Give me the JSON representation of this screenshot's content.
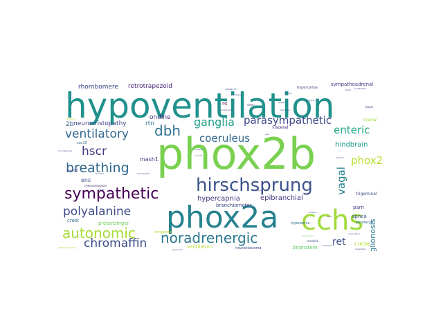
{
  "wordcloud": {
    "words": [
      {
        "text": "hypoventilation",
        "color": "#21918c",
        "size": 50
      },
      {
        "text": "phox2b",
        "color": "#7ad151",
        "size": 62
      },
      {
        "text": "phox2a",
        "color": "#26828e",
        "size": 44
      },
      {
        "text": "cchs",
        "color": "#a0da39",
        "size": 40
      },
      {
        "text": "hirschsprung",
        "color": "#3b528b",
        "size": 26
      },
      {
        "text": "sympathetic",
        "color": "#440154",
        "size": 22
      },
      {
        "text": "autonomic",
        "color": "#a5db36",
        "size": 20
      },
      {
        "text": "noradrenergic",
        "color": "#2a788e",
        "size": 20
      },
      {
        "text": "breathing",
        "color": "#31688e",
        "size": 19
      },
      {
        "text": "polyalanine",
        "color": "#3e4989",
        "size": 17
      },
      {
        "text": "chromaffin",
        "color": "#3e4989",
        "size": 17
      },
      {
        "text": "dbh",
        "color": "#2c728e",
        "size": 20
      },
      {
        "text": "hscr",
        "color": "#443983",
        "size": 17
      },
      {
        "text": "ventilatory",
        "color": "#31688e",
        "size": 17
      },
      {
        "text": "ganglia",
        "color": "#1f9e89",
        "size": 16
      },
      {
        "text": "parasympathetic",
        "color": "#3e4989",
        "size": 15
      },
      {
        "text": "coeruleus",
        "color": "#31688e",
        "size": 15
      },
      {
        "text": "enteric",
        "color": "#22a884",
        "size": 15
      },
      {
        "text": "phox2",
        "color": "#b5de2b",
        "size": 15
      },
      {
        "text": "vagal",
        "color": "#26828e",
        "size": 15
      },
      {
        "text": "ret",
        "color": "#3b528b",
        "size": 14
      },
      {
        "text": "aganglionosis",
        "color": "#2a788e",
        "size": 11
      },
      {
        "text": "hindbrain",
        "color": "#1f9e89",
        "size": 10
      },
      {
        "text": "epibranchial",
        "color": "#46337e",
        "size": 10
      },
      {
        "text": "hypercapnia",
        "color": "#46327e",
        "size": 10
      },
      {
        "text": "rhombomere",
        "color": "#3e4989",
        "size": 9
      },
      {
        "text": "retrotrapezoid",
        "color": "#482878",
        "size": 9
      },
      {
        "text": "neurocristopathy",
        "color": "#404688",
        "size": 9
      },
      {
        "text": "ondine",
        "color": "#46327e",
        "size": 9
      },
      {
        "text": "rtn",
        "color": "#2c728e",
        "size": 9
      },
      {
        "text": "2b",
        "color": "#355f8d",
        "size": 9
      },
      {
        "text": "mash1",
        "color": "#453882",
        "size": 8
      },
      {
        "text": "ens",
        "color": "#3b528b",
        "size": 8
      },
      {
        "text": "crest",
        "color": "#31688e",
        "size": 7
      },
      {
        "text": "prebotzinger",
        "color": "#6ece58",
        "size": 7
      },
      {
        "text": "branchiomotor",
        "color": "#3e4989",
        "size": 7
      },
      {
        "text": "ventilation",
        "color": "#b5de2b",
        "size": 7
      },
      {
        "text": "brainstem",
        "color": "#5ec962",
        "size": 7
      },
      {
        "text": "curse",
        "color": "#b5de2b",
        "size": 8
      },
      {
        "text": "apnea",
        "color": "#3b528b",
        "size": 7
      },
      {
        "text": "parn",
        "color": "#443983",
        "size": 7
      },
      {
        "text": "sympathoadrenal",
        "color": "#453882",
        "size": 7
      },
      {
        "text": "r4",
        "color": "#440154",
        "size": 7
      },
      {
        "text": "visceral",
        "color": "#482878",
        "size": 6
      },
      {
        "text": "hypoxemia",
        "color": "#2c728e",
        "size": 5
      },
      {
        "text": "trigeminal",
        "color": "#3e4989",
        "size": 6
      },
      {
        "text": "cranial",
        "color": "#a0da39",
        "size": 6
      },
      {
        "text": "hypercarbia",
        "color": "#3e4989",
        "size": 5
      },
      {
        "text": "parafacial",
        "color": "#31688e",
        "size": 5
      },
      {
        "text": "hand2",
        "color": "#3e4989",
        "size": 5
      },
      {
        "text": "sox10",
        "color": "#31688e",
        "size": 5
      },
      {
        "text": "neuroblastoma",
        "color": "#3e4989",
        "size": 5
      },
      {
        "text": "congenital",
        "color": "#b5de2b",
        "size": 5
      },
      {
        "text": "chemoreceptors",
        "color": "#482878",
        "size": 4
      },
      {
        "text": "facial",
        "color": "#b5de2b",
        "size": 4
      },
      {
        "text": "medulla",
        "color": "#3e4989",
        "size": 4
      },
      {
        "text": "asymptomatic",
        "color": "#3e4989",
        "size": 3
      },
      {
        "text": "neurogenesis",
        "color": "#3e4989",
        "size": 3
      },
      {
        "text": "syndrome",
        "color": "#3e4989",
        "size": 3
      },
      {
        "text": "respiratory",
        "color": "#3e4989",
        "size": 3
      },
      {
        "text": "migrating",
        "color": "#3e4989",
        "size": 3
      },
      {
        "text": "glia",
        "color": "#3e4989",
        "size": 3
      },
      {
        "text": "mutation",
        "color": "#3e4989",
        "size": 3
      },
      {
        "text": "expansion",
        "color": "#3e4989",
        "size": 3
      },
      {
        "text": "plethysmography",
        "color": "#a0da39",
        "size": 3
      },
      {
        "text": "rs16863757",
        "color": "#3e4989",
        "size": 3
      },
      {
        "text": "locus",
        "color": "#3e4989",
        "size": 3
      },
      {
        "text": "sleep",
        "color": "#3e4989",
        "size": 4
      },
      {
        "text": "basal",
        "color": "#3e4989",
        "size": 4
      },
      {
        "text": "paralogue",
        "color": "#3e4989",
        "size": 3
      },
      {
        "text": "precursors",
        "color": "#5ec962",
        "size": 3
      },
      {
        "text": "ganglion",
        "color": "#3e4989",
        "size": 3
      },
      {
        "text": "central",
        "color": "#3e4989",
        "size": 3
      },
      {
        "text": "pontine",
        "color": "#3e4989",
        "size": 3
      },
      {
        "text": "mutant",
        "color": "#3e4989",
        "size": 3
      },
      {
        "text": "neural",
        "color": "#3e4989",
        "size": 3
      },
      {
        "text": "spinal",
        "color": "#3e4989",
        "size": 3
      },
      {
        "text": "neurons",
        "color": "#3e4989",
        "size": 3
      },
      {
        "text": "progenitors",
        "color": "#3e4989",
        "size": 3
      },
      {
        "text": "projections",
        "color": "#3e4989",
        "size": 3
      },
      {
        "text": "adrenal",
        "color": "#3e4989",
        "size": 3
      },
      {
        "text": "tyrosine",
        "color": "#3e4989",
        "size": 3
      },
      {
        "text": "hydroxylase",
        "color": "#3e4989",
        "size": 3
      },
      {
        "text": "innervation",
        "color": "#3e4989",
        "size": 3
      }
    ]
  }
}
